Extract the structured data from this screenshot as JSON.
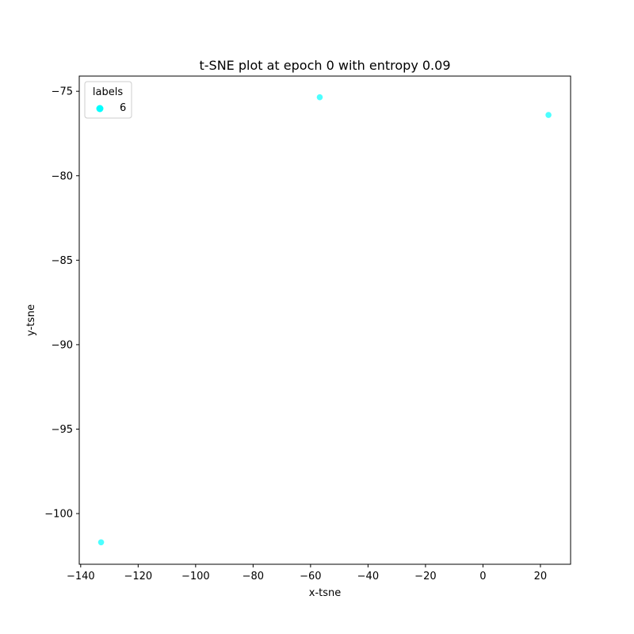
{
  "chart_data": {
    "type": "scatter",
    "title": "t-SNE plot at epoch 0 with entropy 0.09",
    "xlabel": "x-tsne",
    "ylabel": "y-tsne",
    "xlim": [
      -140.5,
      30.5
    ],
    "ylim": [
      -103.0,
      -74.1
    ],
    "xticks": [
      -140,
      -120,
      -100,
      -80,
      -60,
      -40,
      -20,
      0,
      20
    ],
    "yticks": [
      -75,
      -80,
      -85,
      -90,
      -95,
      -100
    ],
    "grid": false,
    "legend": {
      "title": "labels",
      "placement": "top-left"
    },
    "series": [
      {
        "name": "6",
        "color": "#00ffff",
        "points": [
          {
            "x": -56.8,
            "y": -75.35
          },
          {
            "x": 22.8,
            "y": -76.4
          },
          {
            "x": -132.9,
            "y": -101.7
          }
        ]
      }
    ]
  }
}
